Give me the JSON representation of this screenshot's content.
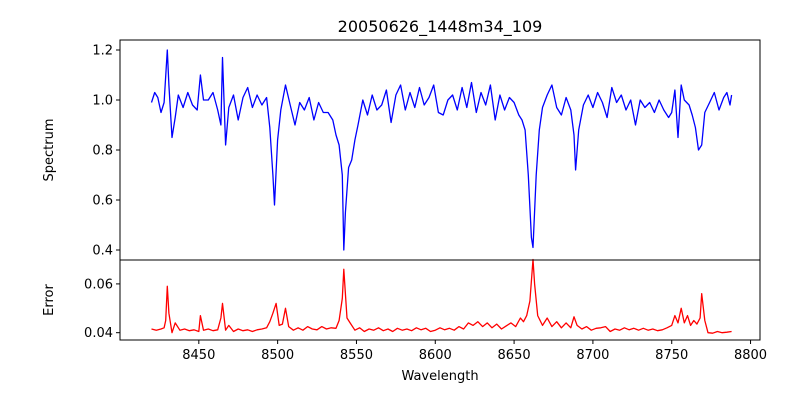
{
  "chart_data": {
    "type": "line",
    "title": "20050626_1448m34_109",
    "xlabel": "Wavelength",
    "xlim": [
      8400,
      8806
    ],
    "xticks": [
      8450,
      8500,
      8550,
      8600,
      8650,
      8700,
      8750,
      8800
    ],
    "panels": [
      {
        "name": "spectrum",
        "ylabel": "Spectrum",
        "ylim": [
          0.36,
          1.24
        ],
        "yticks": [
          0.4,
          0.6,
          0.8,
          1.0,
          1.2
        ],
        "ytick_labels": [
          "0.4",
          "0.6",
          "0.8",
          "1.0",
          "1.2"
        ],
        "color": "#0000ff",
        "points": [
          [
            8420,
            0.99
          ],
          [
            8422,
            1.03
          ],
          [
            8424,
            1.01
          ],
          [
            8426,
            0.95
          ],
          [
            8428,
            0.99
          ],
          [
            8430,
            1.2
          ],
          [
            8431,
            1.06
          ],
          [
            8433,
            0.85
          ],
          [
            8435,
            0.93
          ],
          [
            8437,
            1.02
          ],
          [
            8440,
            0.97
          ],
          [
            8443,
            1.03
          ],
          [
            8446,
            0.98
          ],
          [
            8449,
            0.96
          ],
          [
            8451,
            1.1
          ],
          [
            8453,
            1.0
          ],
          [
            8456,
            1.0
          ],
          [
            8459,
            1.03
          ],
          [
            8462,
            0.96
          ],
          [
            8464,
            0.9
          ],
          [
            8465,
            1.17
          ],
          [
            8467,
            0.82
          ],
          [
            8469,
            0.97
          ],
          [
            8472,
            1.02
          ],
          [
            8475,
            0.92
          ],
          [
            8478,
            1.01
          ],
          [
            8481,
            1.05
          ],
          [
            8484,
            0.97
          ],
          [
            8487,
            1.02
          ],
          [
            8490,
            0.98
          ],
          [
            8493,
            1.01
          ],
          [
            8495,
            0.89
          ],
          [
            8497,
            0.7
          ],
          [
            8498,
            0.58
          ],
          [
            8500,
            0.84
          ],
          [
            8502,
            0.96
          ],
          [
            8505,
            1.06
          ],
          [
            8508,
            0.98
          ],
          [
            8511,
            0.9
          ],
          [
            8514,
            0.99
          ],
          [
            8517,
            0.96
          ],
          [
            8520,
            1.01
          ],
          [
            8523,
            0.92
          ],
          [
            8526,
            0.99
          ],
          [
            8529,
            0.95
          ],
          [
            8532,
            0.95
          ],
          [
            8535,
            0.92
          ],
          [
            8537,
            0.86
          ],
          [
            8539,
            0.82
          ],
          [
            8541,
            0.7
          ],
          [
            8542,
            0.4
          ],
          [
            8543,
            0.55
          ],
          [
            8545,
            0.73
          ],
          [
            8547,
            0.76
          ],
          [
            8549,
            0.84
          ],
          [
            8551,
            0.9
          ],
          [
            8554,
            1.0
          ],
          [
            8557,
            0.94
          ],
          [
            8560,
            1.02
          ],
          [
            8563,
            0.96
          ],
          [
            8566,
            0.98
          ],
          [
            8569,
            1.04
          ],
          [
            8572,
            0.91
          ],
          [
            8575,
            1.02
          ],
          [
            8578,
            1.06
          ],
          [
            8581,
            0.96
          ],
          [
            8584,
            1.03
          ],
          [
            8587,
            0.97
          ],
          [
            8590,
            1.05
          ],
          [
            8593,
            0.98
          ],
          [
            8596,
            1.01
          ],
          [
            8599,
            1.06
          ],
          [
            8602,
            0.95
          ],
          [
            8605,
            0.94
          ],
          [
            8608,
            1.0
          ],
          [
            8611,
            1.02
          ],
          [
            8614,
            0.96
          ],
          [
            8617,
            1.05
          ],
          [
            8620,
            0.97
          ],
          [
            8623,
            1.07
          ],
          [
            8626,
            0.95
          ],
          [
            8629,
            1.03
          ],
          [
            8632,
            0.98
          ],
          [
            8635,
            1.06
          ],
          [
            8638,
            0.92
          ],
          [
            8641,
            1.02
          ],
          [
            8644,
            0.96
          ],
          [
            8647,
            1.01
          ],
          [
            8650,
            0.99
          ],
          [
            8653,
            0.94
          ],
          [
            8655,
            0.92
          ],
          [
            8657,
            0.88
          ],
          [
            8659,
            0.7
          ],
          [
            8661,
            0.45
          ],
          [
            8662,
            0.41
          ],
          [
            8664,
            0.7
          ],
          [
            8666,
            0.88
          ],
          [
            8668,
            0.97
          ],
          [
            8671,
            1.02
          ],
          [
            8674,
            1.06
          ],
          [
            8677,
            0.97
          ],
          [
            8680,
            0.94
          ],
          [
            8683,
            1.01
          ],
          [
            8686,
            0.96
          ],
          [
            8688,
            0.86
          ],
          [
            8689,
            0.72
          ],
          [
            8691,
            0.88
          ],
          [
            8694,
            0.98
          ],
          [
            8697,
            1.02
          ],
          [
            8700,
            0.97
          ],
          [
            8703,
            1.03
          ],
          [
            8706,
            0.99
          ],
          [
            8709,
            0.93
          ],
          [
            8712,
            1.05
          ],
          [
            8715,
            0.99
          ],
          [
            8718,
            1.02
          ],
          [
            8721,
            0.96
          ],
          [
            8724,
            1.0
          ],
          [
            8727,
            0.9
          ],
          [
            8730,
            1.0
          ],
          [
            8733,
            0.97
          ],
          [
            8736,
            0.99
          ],
          [
            8739,
            0.95
          ],
          [
            8742,
            1.0
          ],
          [
            8745,
            0.96
          ],
          [
            8748,
            0.93
          ],
          [
            8750,
            0.95
          ],
          [
            8752,
            1.04
          ],
          [
            8754,
            0.85
          ],
          [
            8756,
            1.06
          ],
          [
            8758,
            1.0
          ],
          [
            8761,
            0.98
          ],
          [
            8763,
            0.94
          ],
          [
            8765,
            0.89
          ],
          [
            8767,
            0.8
          ],
          [
            8769,
            0.82
          ],
          [
            8771,
            0.95
          ],
          [
            8774,
            0.99
          ],
          [
            8777,
            1.03
          ],
          [
            8780,
            0.96
          ],
          [
            8783,
            1.01
          ],
          [
            8785,
            1.03
          ],
          [
            8787,
            0.98
          ],
          [
            8788,
            1.02
          ]
        ]
      },
      {
        "name": "error",
        "ylabel": "Error",
        "ylim": [
          0.037,
          0.0698
        ],
        "yticks": [
          0.04,
          0.06
        ],
        "ytick_labels": [
          "0.04",
          "0.06"
        ],
        "color": "#ff0000",
        "points": [
          [
            8420,
            0.0415
          ],
          [
            8423,
            0.041
          ],
          [
            8426,
            0.0415
          ],
          [
            8428,
            0.042
          ],
          [
            8429,
            0.045
          ],
          [
            8430,
            0.059
          ],
          [
            8431,
            0.048
          ],
          [
            8433,
            0.04
          ],
          [
            8435,
            0.044
          ],
          [
            8438,
            0.041
          ],
          [
            8441,
            0.0415
          ],
          [
            8444,
            0.0408
          ],
          [
            8447,
            0.0412
          ],
          [
            8450,
            0.0405
          ],
          [
            8451,
            0.047
          ],
          [
            8453,
            0.041
          ],
          [
            8456,
            0.0415
          ],
          [
            8459,
            0.0408
          ],
          [
            8462,
            0.0412
          ],
          [
            8464,
            0.046
          ],
          [
            8465,
            0.052
          ],
          [
            8467,
            0.041
          ],
          [
            8469,
            0.043
          ],
          [
            8472,
            0.0405
          ],
          [
            8475,
            0.0415
          ],
          [
            8478,
            0.0408
          ],
          [
            8481,
            0.0412
          ],
          [
            8484,
            0.0405
          ],
          [
            8487,
            0.0412
          ],
          [
            8490,
            0.0415
          ],
          [
            8493,
            0.042
          ],
          [
            8495,
            0.0445
          ],
          [
            8497,
            0.048
          ],
          [
            8499,
            0.052
          ],
          [
            8501,
            0.043
          ],
          [
            8503,
            0.0435
          ],
          [
            8505,
            0.05
          ],
          [
            8507,
            0.0425
          ],
          [
            8510,
            0.041
          ],
          [
            8513,
            0.042
          ],
          [
            8516,
            0.041
          ],
          [
            8519,
            0.0425
          ],
          [
            8522,
            0.0415
          ],
          [
            8525,
            0.0412
          ],
          [
            8528,
            0.0425
          ],
          [
            8531,
            0.0415
          ],
          [
            8534,
            0.042
          ],
          [
            8537,
            0.0418
          ],
          [
            8539,
            0.045
          ],
          [
            8541,
            0.054
          ],
          [
            8542,
            0.066
          ],
          [
            8544,
            0.046
          ],
          [
            8546,
            0.044
          ],
          [
            8549,
            0.041
          ],
          [
            8552,
            0.042
          ],
          [
            8555,
            0.0405
          ],
          [
            8558,
            0.0415
          ],
          [
            8561,
            0.041
          ],
          [
            8564,
            0.042
          ],
          [
            8567,
            0.0408
          ],
          [
            8570,
            0.0415
          ],
          [
            8573,
            0.0405
          ],
          [
            8576,
            0.0418
          ],
          [
            8579,
            0.041
          ],
          [
            8582,
            0.0415
          ],
          [
            8585,
            0.0408
          ],
          [
            8588,
            0.042
          ],
          [
            8591,
            0.0412
          ],
          [
            8594,
            0.0418
          ],
          [
            8597,
            0.0405
          ],
          [
            8600,
            0.041
          ],
          [
            8603,
            0.042
          ],
          [
            8606,
            0.0412
          ],
          [
            8609,
            0.0418
          ],
          [
            8612,
            0.041
          ],
          [
            8615,
            0.0425
          ],
          [
            8618,
            0.0415
          ],
          [
            8621,
            0.044
          ],
          [
            8624,
            0.043
          ],
          [
            8627,
            0.0445
          ],
          [
            8630,
            0.0425
          ],
          [
            8633,
            0.044
          ],
          [
            8636,
            0.042
          ],
          [
            8639,
            0.0435
          ],
          [
            8642,
            0.0415
          ],
          [
            8645,
            0.0428
          ],
          [
            8648,
            0.044
          ],
          [
            8651,
            0.0425
          ],
          [
            8654,
            0.046
          ],
          [
            8656,
            0.0445
          ],
          [
            8658,
            0.047
          ],
          [
            8660,
            0.053
          ],
          [
            8662,
            0.07
          ],
          [
            8663,
            0.06
          ],
          [
            8665,
            0.047
          ],
          [
            8668,
            0.043
          ],
          [
            8671,
            0.046
          ],
          [
            8674,
            0.0425
          ],
          [
            8677,
            0.0445
          ],
          [
            8680,
            0.042
          ],
          [
            8683,
            0.044
          ],
          [
            8686,
            0.042
          ],
          [
            8688,
            0.0465
          ],
          [
            8690,
            0.043
          ],
          [
            8693,
            0.0415
          ],
          [
            8696,
            0.0425
          ],
          [
            8699,
            0.041
          ],
          [
            8702,
            0.0418
          ],
          [
            8705,
            0.042
          ],
          [
            8708,
            0.0425
          ],
          [
            8711,
            0.0405
          ],
          [
            8714,
            0.0415
          ],
          [
            8717,
            0.041
          ],
          [
            8720,
            0.042
          ],
          [
            8723,
            0.0412
          ],
          [
            8726,
            0.0418
          ],
          [
            8729,
            0.041
          ],
          [
            8732,
            0.0418
          ],
          [
            8735,
            0.041
          ],
          [
            8738,
            0.0415
          ],
          [
            8741,
            0.0408
          ],
          [
            8744,
            0.0412
          ],
          [
            8747,
            0.042
          ],
          [
            8750,
            0.043
          ],
          [
            8752,
            0.047
          ],
          [
            8754,
            0.044
          ],
          [
            8756,
            0.05
          ],
          [
            8758,
            0.044
          ],
          [
            8760,
            0.047
          ],
          [
            8762,
            0.043
          ],
          [
            8764,
            0.045
          ],
          [
            8766,
            0.0435
          ],
          [
            8768,
            0.046
          ],
          [
            8769,
            0.056
          ],
          [
            8771,
            0.045
          ],
          [
            8773,
            0.04
          ],
          [
            8776,
            0.0398
          ],
          [
            8779,
            0.0405
          ],
          [
            8782,
            0.04
          ],
          [
            8785,
            0.0402
          ],
          [
            8788,
            0.0405
          ]
        ]
      }
    ]
  }
}
